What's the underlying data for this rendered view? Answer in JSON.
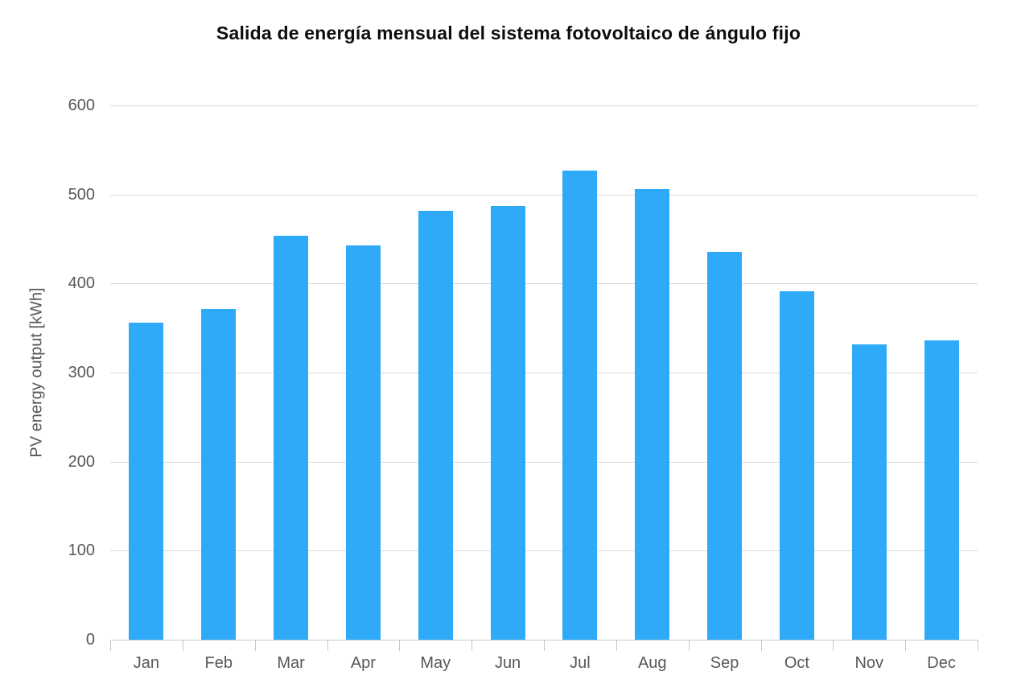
{
  "title": "Salida de energía mensual del sistema fotovoltaico de ángulo fijo",
  "chart_data": {
    "type": "bar",
    "title": "Salida de energía mensual del sistema fotovoltaico de ángulo fijo",
    "categories": [
      "Jan",
      "Feb",
      "Mar",
      "Apr",
      "May",
      "Jun",
      "Jul",
      "Aug",
      "Sep",
      "Oct",
      "Nov",
      "Dec"
    ],
    "values": [
      356,
      371,
      454,
      443,
      482,
      487,
      527,
      506,
      436,
      391,
      332,
      336
    ],
    "xlabel": "",
    "ylabel": "PV energy output [kWh]",
    "ylim": [
      0,
      600
    ],
    "yticks": [
      0,
      100,
      200,
      300,
      400,
      500,
      600
    ],
    "grid": "horizontal",
    "legend_position": "none",
    "bar_color": "#2faaf8",
    "grid_color": "#d9dadb",
    "axis_color": "#c3c8cc",
    "label_color": "#55595c",
    "title_color": "#0d0d0d"
  }
}
